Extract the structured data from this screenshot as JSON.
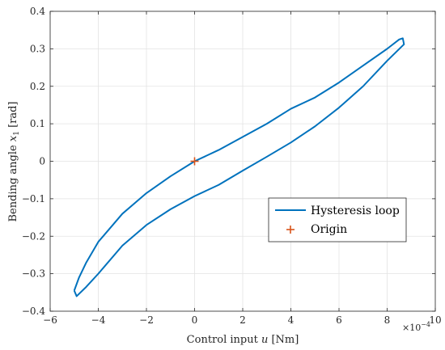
{
  "chart_data": {
    "type": "line",
    "xlabel": "Control input u [Nm]",
    "ylabel": "Bending angle x1 [rad]",
    "x_multiplier": "×10^-4",
    "xlim": [
      -6,
      10
    ],
    "ylim": [
      -0.4,
      0.4
    ],
    "xticks": [
      -6,
      -4,
      -2,
      0,
      2,
      4,
      6,
      8,
      10
    ],
    "yticks": [
      -0.4,
      -0.3,
      -0.2,
      -0.1,
      0,
      0.1,
      0.2,
      0.3,
      0.4
    ],
    "grid": true,
    "legend_position": "right",
    "series": [
      {
        "name": "Hysteresis loop",
        "color": "#0072BD",
        "style": "line",
        "points": [
          [
            -5.0,
            -0.345
          ],
          [
            -4.9,
            -0.36
          ],
          [
            -4.5,
            -0.335
          ],
          [
            -4.0,
            -0.3
          ],
          [
            -3.0,
            -0.225
          ],
          [
            -2.0,
            -0.17
          ],
          [
            -1.0,
            -0.128
          ],
          [
            0.0,
            -0.093
          ],
          [
            1.0,
            -0.063
          ],
          [
            2.0,
            -0.025
          ],
          [
            3.0,
            0.012
          ],
          [
            4.0,
            0.05
          ],
          [
            5.0,
            0.093
          ],
          [
            6.0,
            0.143
          ],
          [
            7.0,
            0.2
          ],
          [
            8.0,
            0.268
          ],
          [
            8.7,
            0.312
          ],
          [
            8.65,
            0.328
          ],
          [
            8.5,
            0.325
          ],
          [
            8.0,
            0.3
          ],
          [
            7.0,
            0.255
          ],
          [
            6.0,
            0.21
          ],
          [
            5.0,
            0.17
          ],
          [
            4.0,
            0.14
          ],
          [
            3.0,
            0.1
          ],
          [
            2.0,
            0.065
          ],
          [
            1.0,
            0.03
          ],
          [
            0.0,
            0.0
          ],
          [
            -1.0,
            -0.04
          ],
          [
            -2.0,
            -0.085
          ],
          [
            -3.0,
            -0.14
          ],
          [
            -4.0,
            -0.215
          ],
          [
            -4.5,
            -0.27
          ],
          [
            -4.8,
            -0.31
          ],
          [
            -5.0,
            -0.345
          ]
        ]
      },
      {
        "name": "Origin",
        "color": "#D95319",
        "style": "marker-plus",
        "points": [
          [
            0,
            0
          ]
        ]
      }
    ]
  }
}
